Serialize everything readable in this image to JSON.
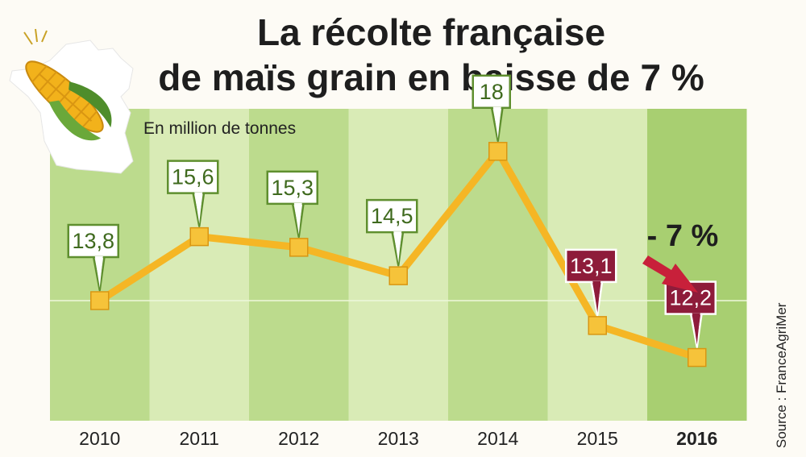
{
  "chart_data": {
    "type": "line",
    "title": [
      "La récolte française",
      "de maïs grain en baisse de 7 %"
    ],
    "unit_label": "En million de tonnes",
    "categories": [
      "2010",
      "2011",
      "2012",
      "2013",
      "2014",
      "2015",
      "2016"
    ],
    "values": [
      13.8,
      15.6,
      15.3,
      14.5,
      18,
      13.1,
      12.2
    ],
    "value_labels": [
      "13,8",
      "15,6",
      "15,3",
      "14,5",
      "18",
      "13,1",
      "12,2"
    ],
    "highlighted_points": [
      "2015",
      "2016"
    ],
    "highlighted_category": "2016",
    "change_annotation": "- 7 %",
    "source": "Source : FranceAgriMer",
    "legend": "none",
    "grid": "one horizontal gridline at 13.8"
  },
  "colors": {
    "line": "#f5b625",
    "marker_fill": "#f6c33a",
    "marker_stroke": "#d99612",
    "label_border_normal": "#5f8f2f",
    "label_text_normal": "#3f6a1e",
    "label_fill_highlight": "#8e1c3a",
    "arrow": "#c8203a",
    "band_dark": "#bcdb8d",
    "band_light": "#d9ebb6",
    "band_highlight": "#a8cf71"
  },
  "decoration": {
    "illustration": "corn-cob-on-france-map-icon"
  }
}
